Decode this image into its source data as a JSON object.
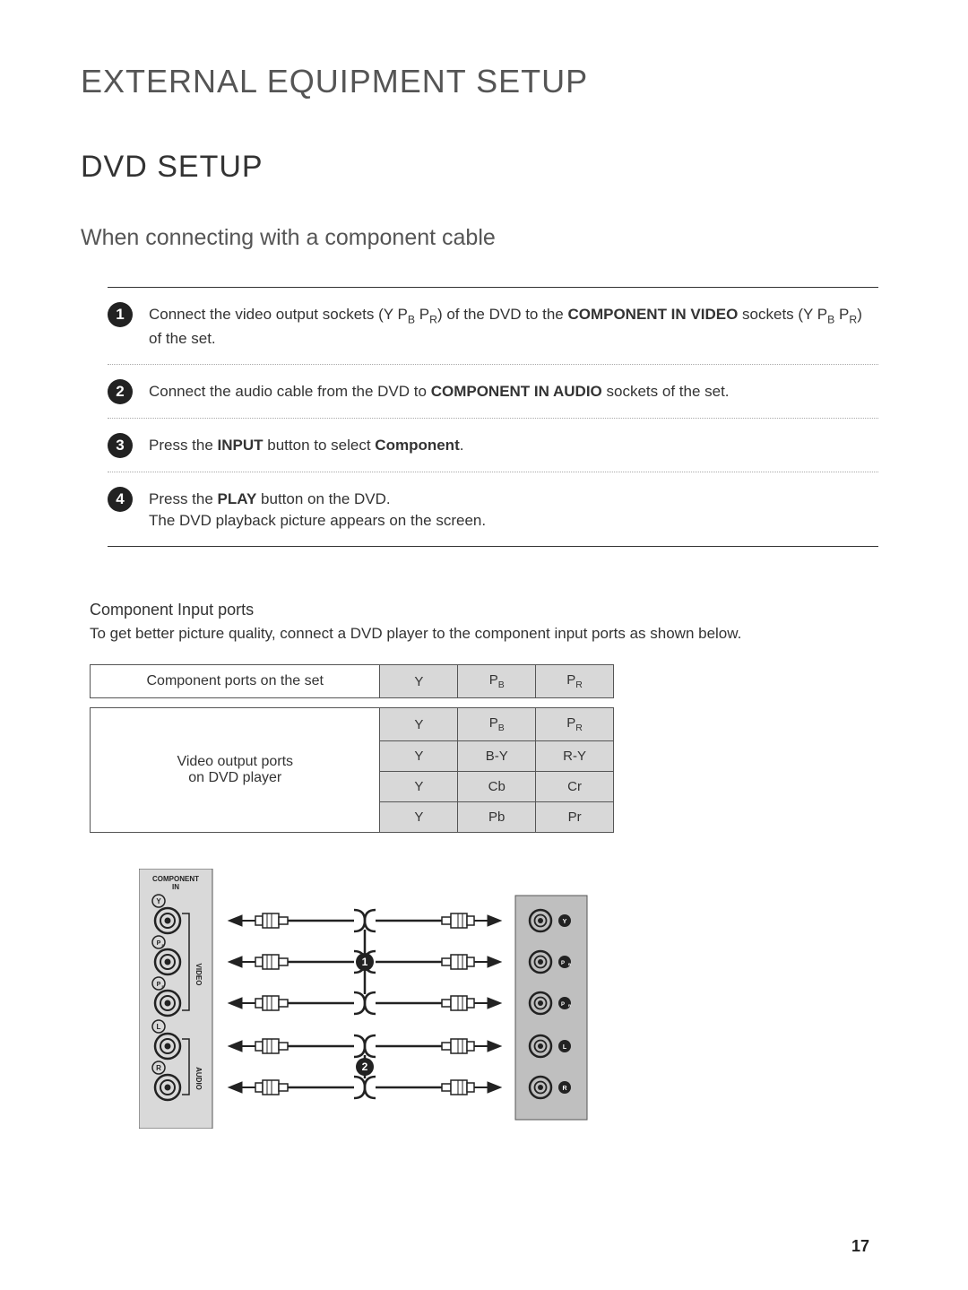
{
  "pageTitle": "EXTERNAL EQUIPMENT SETUP",
  "sectionTitle": "DVD SETUP",
  "subsectionTitle": "When connecting with a component cable",
  "steps": [
    {
      "n": "1",
      "html": "Connect the video output sockets (Y P<span class='sub'>B</span> P<span class='sub'>R</span>) of the DVD to the <b>COMPONENT IN VIDEO</b> sockets (Y P<span class='sub'>B</span> P<span class='sub'>R</span>) of the set."
    },
    {
      "n": "2",
      "html": "Connect the audio cable from the DVD to <b>COMPONENT IN AUDIO</b> sockets of the set."
    },
    {
      "n": "3",
      "html": "Press the <b>INPUT</b> button to select <b>Component</b>."
    },
    {
      "n": "4",
      "html": "Press the <b>PLAY</b> button on the DVD.<br>The DVD playback picture appears on the screen."
    }
  ],
  "ports": {
    "heading": "Component Input ports",
    "desc": "To get better picture quality, connect a DVD player to the component input ports as shown below.",
    "table1": {
      "rowLabel": "Component ports on the set",
      "cols": [
        "Y",
        "P<span class='sub-s'>B</span>",
        "P<span class='sub-s'>R</span>"
      ]
    },
    "table2": {
      "rowLabel": "Video output ports<br>on DVD player",
      "rows": [
        [
          "Y",
          "P<span class='sub-s'>B</span>",
          "P<span class='sub-s'>R</span>"
        ],
        [
          "Y",
          "B-Y",
          "R-Y"
        ],
        [
          "Y",
          "Cb",
          "Cr"
        ],
        [
          "Y",
          "Pb",
          "Pr"
        ]
      ]
    }
  },
  "diagram": {
    "leftPanel": {
      "title": "COMPONENT IN",
      "groups": [
        {
          "label": "VIDEO",
          "jacks": [
            "Y",
            "P_B",
            "P_R"
          ]
        },
        {
          "label": "AUDIO",
          "jacks": [
            "L",
            "R"
          ]
        }
      ],
      "panel_bg": "#d9d9d9",
      "jack_outer": "#222222",
      "jack_inner": "#ffffff"
    },
    "rightPanel": {
      "jacks": [
        "Y",
        "P_B",
        "P_R",
        "L",
        "R"
      ],
      "panel_bg": "#bfbfbf"
    },
    "cables": {
      "count": 5,
      "callouts": [
        {
          "n": "1",
          "after_row": 1
        },
        {
          "n": "2",
          "after_row": 3
        }
      ],
      "cable_color": "#222222",
      "plug_body": "#ffffff"
    }
  },
  "pageNumber": "17",
  "colors": {
    "text": "#333333",
    "muted": "#555555",
    "bullet_bg": "#222222",
    "bullet_fg": "#ffffff",
    "rule": "#333333",
    "dotted": "#aaaaaa",
    "table_border": "#555555",
    "table_shade": "#d8d8d8"
  },
  "typography": {
    "page_title_pt": 36,
    "section_title_pt": 34,
    "subsection_pt": 25,
    "body_pt": 17,
    "table_pt": 15
  }
}
